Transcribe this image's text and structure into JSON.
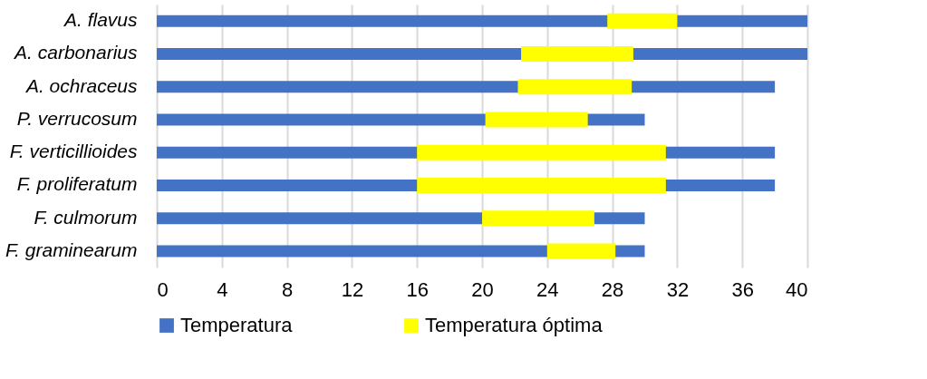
{
  "chart_data": {
    "type": "bar",
    "orientation": "horizontal",
    "categories": [
      "A. flavus",
      "A. carbonarius",
      "A. ochraceus",
      "P. verrucosum",
      "F. verticillioides",
      "F. proliferatum",
      "F. culmorum",
      "F. graminearum"
    ],
    "series": [
      {
        "name": "Temperatura",
        "color": "#4472c4",
        "values": [
          40,
          40,
          38,
          30,
          38,
          38,
          30,
          30
        ]
      },
      {
        "name": "Temperatura óptima",
        "color": "#ffff00",
        "base": [
          27.7,
          22.4,
          22.2,
          20.2,
          16,
          16,
          20,
          24
        ],
        "values": [
          4.3,
          6.9,
          7.0,
          6.3,
          15.3,
          15.3,
          6.9,
          4.2
        ]
      }
    ],
    "xlim": [
      0,
      40
    ],
    "xticks": [
      0,
      4,
      8,
      12,
      16,
      20,
      24,
      28,
      32,
      36,
      40
    ],
    "grid": "x",
    "legend": "bottom"
  }
}
